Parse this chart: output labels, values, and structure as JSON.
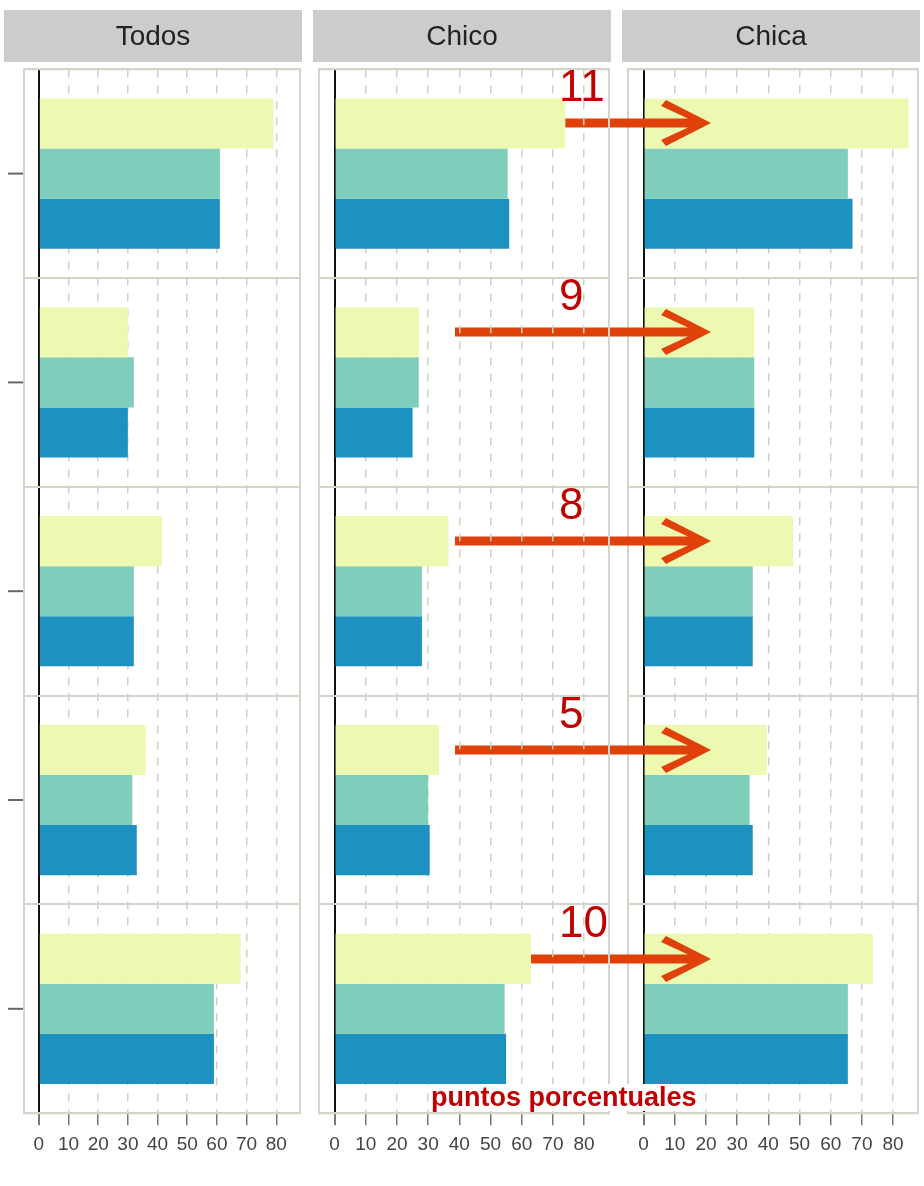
{
  "chart_data": [
    {
      "type": "bar",
      "orientation": "horizontal",
      "title": "Todos",
      "categories": [
        null,
        null,
        null,
        null,
        null
      ],
      "xlim": [
        -5,
        88
      ],
      "xticks": [
        0,
        10,
        20,
        30,
        40,
        50,
        60,
        70,
        80
      ],
      "grid": true,
      "series": [
        {
          "color": "#edf8b1",
          "values": [
            79,
            30,
            41.5,
            36,
            68
          ]
        },
        {
          "color": "#7fcdbb",
          "values": [
            61,
            32,
            32,
            31.5,
            59
          ]
        },
        {
          "color": "#1d91c0",
          "values": [
            61,
            30,
            32,
            33,
            59
          ]
        }
      ]
    },
    {
      "type": "bar",
      "orientation": "horizontal",
      "title": "Chico",
      "categories": [
        null,
        null,
        null,
        null,
        null
      ],
      "xlim": [
        -5,
        88
      ],
      "xticks": [
        0,
        10,
        20,
        30,
        40,
        50,
        60,
        70,
        80
      ],
      "grid": true,
      "annotations": [
        "11",
        "9",
        "8",
        "5",
        "10",
        "puntos porcentuales"
      ],
      "series": [
        {
          "color": "#edf8b1",
          "values": [
            74,
            27,
            36.5,
            33.5,
            63
          ]
        },
        {
          "color": "#7fcdbb",
          "values": [
            55.5,
            27,
            28,
            30,
            54.5
          ]
        },
        {
          "color": "#1d91c0",
          "values": [
            56,
            25,
            28,
            30.5,
            55
          ]
        }
      ]
    },
    {
      "type": "bar",
      "orientation": "horizontal",
      "title": "Chica",
      "categories": [
        null,
        null,
        null,
        null,
        null
      ],
      "xlim": [
        -5,
        88
      ],
      "xticks": [
        0,
        10,
        20,
        30,
        40,
        50,
        60,
        70,
        80
      ],
      "grid": true,
      "series": [
        {
          "color": "#edf8b1",
          "values": [
            85,
            35.5,
            48,
            39.5,
            73.5
          ]
        },
        {
          "color": "#7fcdbb",
          "values": [
            65.5,
            35.5,
            35,
            34,
            65.5
          ]
        },
        {
          "color": "#1d91c0",
          "values": [
            67,
            35.5,
            35,
            35,
            65.5
          ]
        }
      ]
    }
  ]
}
